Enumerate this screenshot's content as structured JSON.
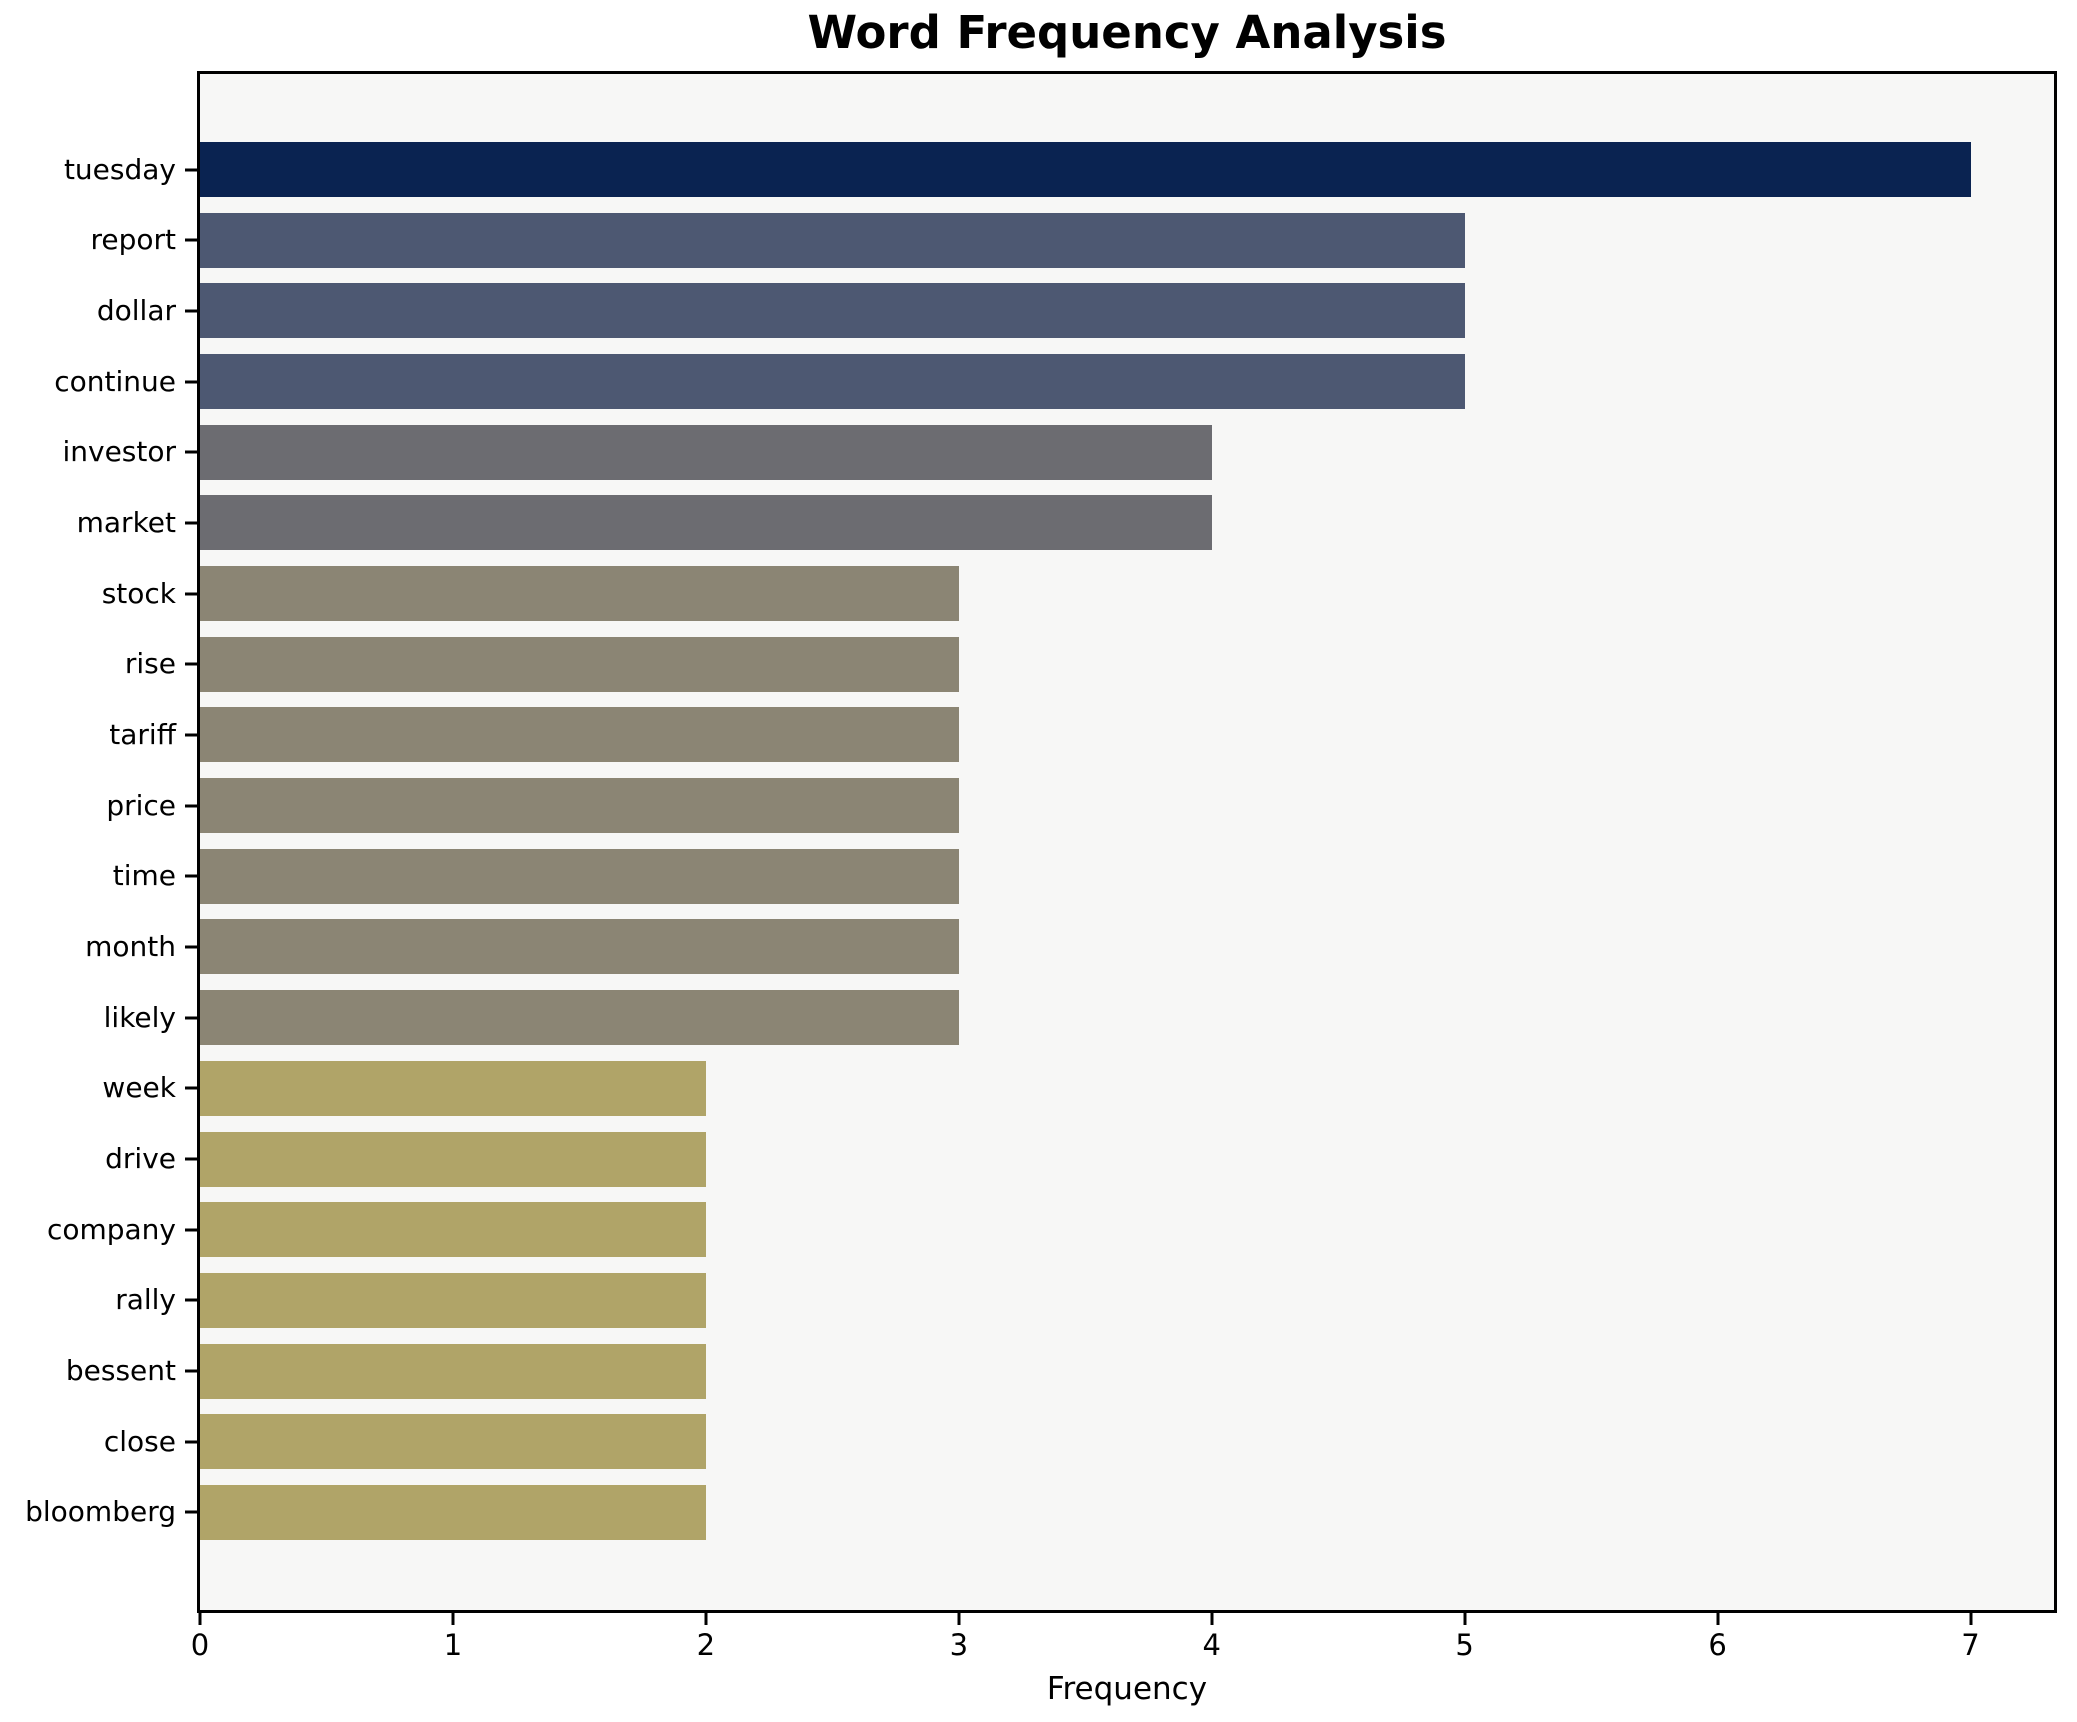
{
  "title": "Word Frequency Analysis",
  "chart_data": {
    "type": "bar",
    "orientation": "horizontal",
    "title": "Word Frequency Analysis",
    "xlabel": "Frequency",
    "ylabel": "",
    "categories": [
      "tuesday",
      "report",
      "dollar",
      "continue",
      "investor",
      "market",
      "stock",
      "rise",
      "tariff",
      "price",
      "time",
      "month",
      "likely",
      "week",
      "drive",
      "company",
      "rally",
      "bessent",
      "close",
      "bloomberg"
    ],
    "values": [
      7,
      5,
      5,
      5,
      4,
      4,
      3,
      3,
      3,
      3,
      3,
      3,
      3,
      2,
      2,
      2,
      2,
      2,
      2,
      2
    ],
    "bar_colors": [
      "#0a2351",
      "#4d5872",
      "#4d5872",
      "#4d5872",
      "#6c6c71",
      "#6c6c71",
      "#8b8574",
      "#8b8574",
      "#8b8574",
      "#8b8574",
      "#8b8574",
      "#8b8574",
      "#8b8574",
      "#b0a468",
      "#b0a468",
      "#b0a468",
      "#b0a468",
      "#b0a468",
      "#b0a468",
      "#b0a468"
    ],
    "xticks": [
      0,
      1,
      2,
      3,
      4,
      5,
      6,
      7
    ],
    "xlim": [
      0,
      7.33
    ],
    "grid": false,
    "legend_position": "none",
    "plot_background": "#f7f7f6",
    "figure_background": "#ffffff",
    "spine_color": "#000000"
  }
}
